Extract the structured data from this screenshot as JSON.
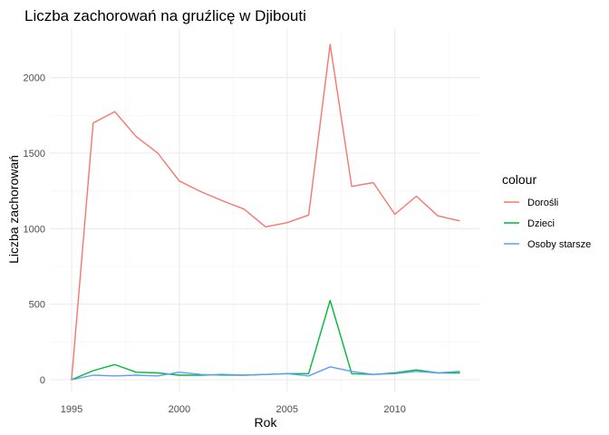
{
  "chart_data": {
    "type": "line",
    "title": "Liczba zachorowań na gruźlicę w Djibouti",
    "xlabel": "Rok",
    "ylabel": "Liczba zachorowań",
    "xlim": [
      1995,
      2013
    ],
    "ylim": [
      0,
      2220
    ],
    "x_ticks": [
      1995,
      2000,
      2005,
      2010
    ],
    "y_ticks": [
      0,
      500,
      1000,
      1500,
      2000
    ],
    "x_tick_labels": [
      "1995",
      "2000",
      "2005",
      "2010"
    ],
    "y_tick_labels": [
      "0",
      "500",
      "1000",
      "1500",
      "2000"
    ],
    "grid": true,
    "legend": {
      "title": "colour",
      "position": "right"
    },
    "x": [
      1995,
      1996,
      1997,
      1998,
      1999,
      2000,
      2001,
      2002,
      2003,
      2004,
      2005,
      2006,
      2007,
      2008,
      2009,
      2010,
      2011,
      2012,
      2013
    ],
    "series": [
      {
        "name": "Dorośli",
        "color": "#F8766D",
        "values": [
          0,
          1700,
          1775,
          1610,
          1500,
          1315,
          1245,
          1185,
          1130,
          1012,
          1040,
          1090,
          2220,
          1280,
          1305,
          1095,
          1215,
          1085,
          1052
        ]
      },
      {
        "name": "Dzieci",
        "color": "#00BA38",
        "values": [
          0,
          60,
          100,
          50,
          45,
          30,
          30,
          35,
          30,
          35,
          40,
          40,
          525,
          40,
          35,
          45,
          65,
          45,
          45
        ]
      },
      {
        "name": "Osoby starsze",
        "color": "#619CFF",
        "values": [
          0,
          30,
          25,
          30,
          25,
          50,
          35,
          30,
          30,
          35,
          40,
          25,
          85,
          55,
          35,
          40,
          55,
          45,
          55
        ]
      }
    ]
  }
}
